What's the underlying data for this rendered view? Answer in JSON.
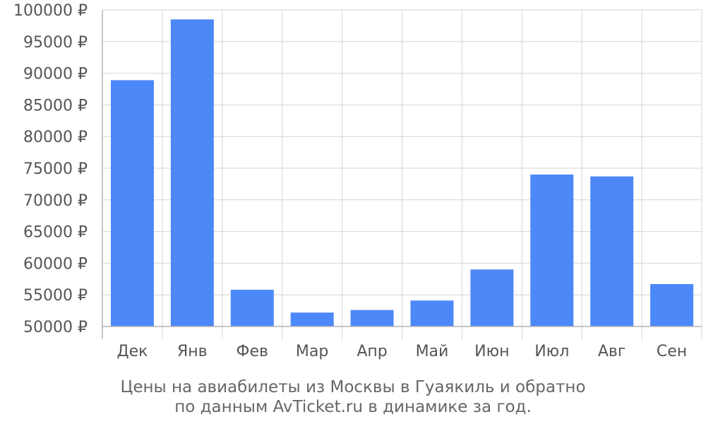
{
  "chart_data": {
    "type": "bar",
    "categories": [
      "Дек",
      "Янв",
      "Фев",
      "Мар",
      "Апр",
      "Май",
      "Июн",
      "Июл",
      "Авг",
      "Сен"
    ],
    "values": [
      88900,
      98500,
      55800,
      52200,
      52600,
      54100,
      59000,
      74000,
      73700,
      56700
    ],
    "ylim": [
      50000,
      100000
    ],
    "yticks": [
      50000,
      55000,
      60000,
      65000,
      70000,
      75000,
      80000,
      85000,
      90000,
      95000,
      100000
    ],
    "ytick_suffix": " ₽",
    "grid": true,
    "bar_color": "#4d88f9",
    "title": "",
    "xlabel": "",
    "ylabel": ""
  },
  "caption": {
    "line1": "Цены на авиабилеты из Москвы в Гуаякиль и обратно",
    "line2": "по данным AvTicket.ru в динамике за год."
  }
}
